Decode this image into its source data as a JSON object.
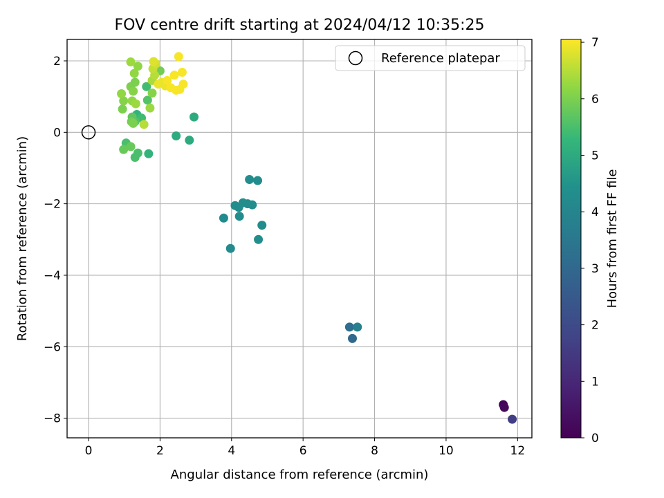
{
  "chart_data": {
    "type": "scatter",
    "title": "FOV centre drift starting at 2024/04/12 10:35:25",
    "xlabel": "Angular distance from reference (arcmin)",
    "ylabel": "Rotation from reference (arcmin)",
    "xlim": [
      -0.6,
      12.4
    ],
    "ylim": [
      -8.55,
      2.6
    ],
    "xticks": [
      0,
      2,
      4,
      6,
      8,
      10,
      12
    ],
    "xtick_labels": [
      "0",
      "2",
      "4",
      "6",
      "8",
      "10",
      "12"
    ],
    "yticks": [
      2,
      0,
      -2,
      -4,
      -6,
      -8
    ],
    "ytick_labels": [
      "2",
      "0",
      "−2",
      "−4",
      "−6",
      "−8"
    ],
    "grid": true,
    "legend": {
      "placement": "top-right",
      "entries": [
        {
          "label": "Reference platepar",
          "marker": "open-circle"
        }
      ]
    },
    "reference_point": {
      "x": 0,
      "y": 0
    },
    "colorbar": {
      "label": "Hours from first FF file",
      "colormap": "viridis",
      "range": [
        0,
        7.05
      ],
      "ticks": [
        0,
        1,
        2,
        3,
        4,
        5,
        6,
        7
      ],
      "tick_labels": [
        "0",
        "1",
        "2",
        "3",
        "4",
        "5",
        "6",
        "7"
      ]
    },
    "points": [
      {
        "x": 11.6,
        "y": -7.62,
        "c": 0.1
      },
      {
        "x": 11.63,
        "y": -7.7,
        "c": 0.2
      },
      {
        "x": 11.85,
        "y": -8.03,
        "c": 1.6
      },
      {
        "x": 7.3,
        "y": -5.45,
        "c": 3.2
      },
      {
        "x": 7.38,
        "y": -5.77,
        "c": 3.0
      },
      {
        "x": 7.52,
        "y": -5.45,
        "c": 3.8
      },
      {
        "x": 3.78,
        "y": -2.4,
        "c": 4.2
      },
      {
        "x": 3.97,
        "y": -3.25,
        "c": 4.2
      },
      {
        "x": 4.1,
        "y": -2.05,
        "c": 4.3
      },
      {
        "x": 4.2,
        "y": -2.1,
        "c": 4.3
      },
      {
        "x": 4.22,
        "y": -2.35,
        "c": 4.3
      },
      {
        "x": 4.32,
        "y": -1.97,
        "c": 4.3
      },
      {
        "x": 4.45,
        "y": -2.0,
        "c": 4.3
      },
      {
        "x": 4.58,
        "y": -2.03,
        "c": 4.3
      },
      {
        "x": 4.5,
        "y": -1.32,
        "c": 4.3
      },
      {
        "x": 4.73,
        "y": -1.35,
        "c": 4.3
      },
      {
        "x": 4.85,
        "y": -2.6,
        "c": 4.3
      },
      {
        "x": 4.75,
        "y": -3.0,
        "c": 4.3
      },
      {
        "x": 2.45,
        "y": -0.1,
        "c": 5.0
      },
      {
        "x": 2.82,
        "y": -0.22,
        "c": 5.0
      },
      {
        "x": 2.95,
        "y": 0.43,
        "c": 5.0
      },
      {
        "x": 1.68,
        "y": -0.6,
        "c": 5.2
      },
      {
        "x": 1.38,
        "y": -0.58,
        "c": 5.5
      },
      {
        "x": 1.3,
        "y": -0.7,
        "c": 5.5
      },
      {
        "x": 1.05,
        "y": -0.3,
        "c": 5.5
      },
      {
        "x": 0.98,
        "y": -0.48,
        "c": 5.8
      },
      {
        "x": 1.18,
        "y": -0.4,
        "c": 5.8
      },
      {
        "x": 1.35,
        "y": 0.5,
        "c": 5.2
      },
      {
        "x": 1.48,
        "y": 0.4,
        "c": 5.4
      },
      {
        "x": 1.3,
        "y": 0.3,
        "c": 5.6
      },
      {
        "x": 1.22,
        "y": 0.43,
        "c": 5.7
      },
      {
        "x": 1.2,
        "y": 0.3,
        "c": 5.9
      },
      {
        "x": 1.25,
        "y": 0.25,
        "c": 6.0
      },
      {
        "x": 1.55,
        "y": 0.22,
        "c": 6.5
      },
      {
        "x": 1.62,
        "y": 1.28,
        "c": 5.4
      },
      {
        "x": 1.65,
        "y": 0.9,
        "c": 5.6
      },
      {
        "x": 1.72,
        "y": 0.68,
        "c": 6.3
      },
      {
        "x": 1.78,
        "y": 1.1,
        "c": 6.1
      },
      {
        "x": 1.3,
        "y": 1.4,
        "c": 6.0
      },
      {
        "x": 1.18,
        "y": 1.28,
        "c": 6.0
      },
      {
        "x": 1.25,
        "y": 1.15,
        "c": 6.1
      },
      {
        "x": 0.95,
        "y": 0.65,
        "c": 6.0
      },
      {
        "x": 0.98,
        "y": 0.88,
        "c": 6.1
      },
      {
        "x": 0.92,
        "y": 1.08,
        "c": 6.2
      },
      {
        "x": 1.22,
        "y": 0.88,
        "c": 6.2
      },
      {
        "x": 1.32,
        "y": 0.8,
        "c": 6.3
      },
      {
        "x": 1.28,
        "y": 1.65,
        "c": 6.2
      },
      {
        "x": 1.38,
        "y": 1.85,
        "c": 6.2
      },
      {
        "x": 1.18,
        "y": 1.97,
        "c": 6.3
      },
      {
        "x": 2.0,
        "y": 1.72,
        "c": 5.9
      },
      {
        "x": 1.78,
        "y": 1.45,
        "c": 6.4
      },
      {
        "x": 1.85,
        "y": 1.6,
        "c": 6.5
      },
      {
        "x": 1.8,
        "y": 1.78,
        "c": 6.6
      },
      {
        "x": 1.88,
        "y": 1.92,
        "c": 6.7
      },
      {
        "x": 1.82,
        "y": 1.98,
        "c": 6.8
      },
      {
        "x": 1.95,
        "y": 1.35,
        "c": 6.9
      },
      {
        "x": 2.05,
        "y": 1.4,
        "c": 6.9
      },
      {
        "x": 2.15,
        "y": 1.3,
        "c": 6.9
      },
      {
        "x": 2.2,
        "y": 1.45,
        "c": 7.0
      },
      {
        "x": 2.3,
        "y": 1.25,
        "c": 7.0
      },
      {
        "x": 2.4,
        "y": 1.6,
        "c": 7.0
      },
      {
        "x": 2.45,
        "y": 1.18,
        "c": 7.0
      },
      {
        "x": 2.55,
        "y": 1.2,
        "c": 7.0
      },
      {
        "x": 2.62,
        "y": 1.68,
        "c": 7.0
      },
      {
        "x": 2.65,
        "y": 1.35,
        "c": 7.0
      },
      {
        "x": 2.52,
        "y": 2.12,
        "c": 7.0
      }
    ]
  }
}
